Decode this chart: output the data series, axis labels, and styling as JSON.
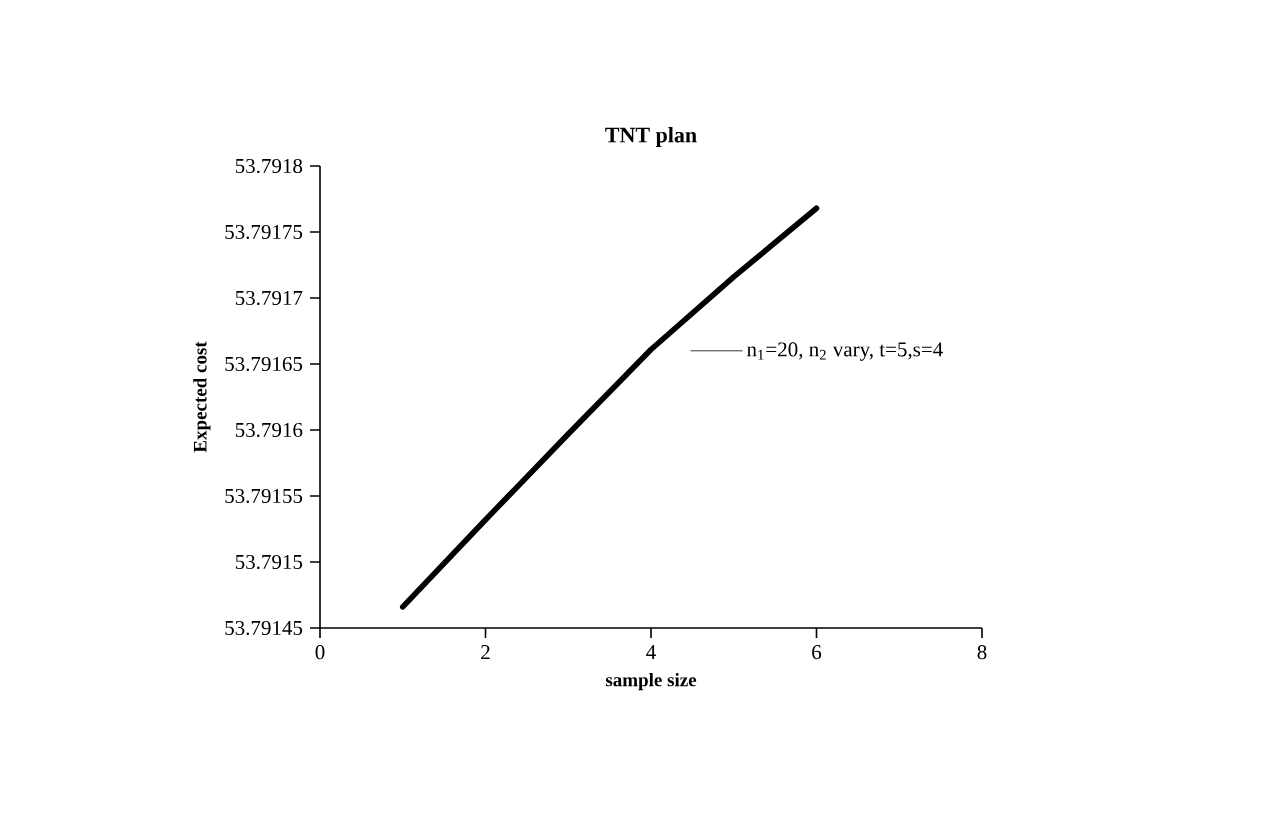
{
  "chart_data": {
    "type": "line",
    "title": "TNT plan",
    "xlabel": "sample size",
    "ylabel": "Expected cost",
    "x": [
      1,
      2,
      3,
      4,
      5,
      6
    ],
    "series": [
      {
        "name": "n$_{1}$=20, n$_{2}$ vary, t=5,s=4",
        "color": "#000000",
        "values": [
          53.791466,
          53.791532,
          53.791597,
          53.791661,
          53.791716,
          53.791768
        ]
      }
    ],
    "xlim": [
      0,
      8
    ],
    "xticks": [
      0,
      2,
      4,
      6,
      8
    ],
    "ylim": [
      53.79145,
      53.7918
    ],
    "yticks": [
      53.79145,
      53.7915,
      53.79155,
      53.7916,
      53.79165,
      53.7917,
      53.79175,
      53.7918
    ],
    "legend": "right",
    "marker": "none",
    "line_style": "solid",
    "grid": false
  }
}
